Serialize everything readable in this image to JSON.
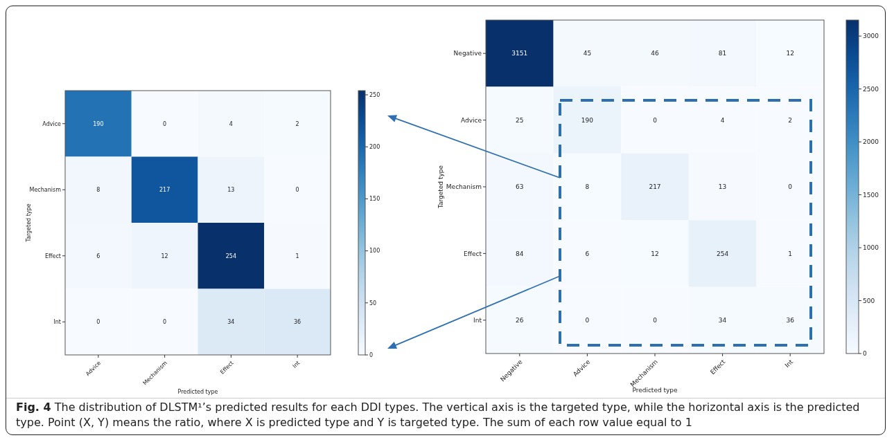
{
  "chart_data": [
    {
      "type": "heatmap",
      "xlabel": "Predicted type",
      "ylabel": "Targeted type",
      "categories": [
        "Advice",
        "Mechanism",
        "Effect",
        "Int"
      ],
      "y_categories": [
        "Advice",
        "Mechanism",
        "Effect",
        "Int"
      ],
      "cells": [
        [
          190,
          0,
          4,
          2
        ],
        [
          8,
          217,
          13,
          0
        ],
        [
          6,
          12,
          254,
          1
        ],
        [
          0,
          0,
          34,
          36
        ]
      ],
      "clim": [
        0,
        254
      ],
      "cticks": [
        0,
        50,
        100,
        150,
        200,
        250
      ],
      "data_labels": true,
      "annotations": [
        "Fig. 4 The distribution of DLSTM¹’s predicted results for each DDI types. The vertical axis is the targeted type, while the horizontal axis is the predicted type. Point (X, Y) means the ratio, where X is predicted type and Y is targeted type. The sum of each row value equal to 1"
      ]
    },
    {
      "type": "heatmap",
      "xlabel": "Predicted type",
      "ylabel": "Targeted type",
      "categories": [
        "Negative",
        "Advice",
        "Mechanism",
        "Effect",
        "Int"
      ],
      "y_categories": [
        "Negative",
        "Advice",
        "Mechanism",
        "Effect",
        "Int"
      ],
      "cells": [
        [
          3151,
          45,
          46,
          81,
          12
        ],
        [
          25,
          190,
          0,
          4,
          2
        ],
        [
          63,
          8,
          217,
          13,
          0
        ],
        [
          84,
          6,
          12,
          254,
          1
        ],
        [
          26,
          0,
          0,
          34,
          36
        ]
      ],
      "clim": [
        0,
        3151
      ],
      "cticks": [
        0,
        500,
        1000,
        1500,
        2000,
        2500,
        3000
      ],
      "data_labels": true
    }
  ]
}
